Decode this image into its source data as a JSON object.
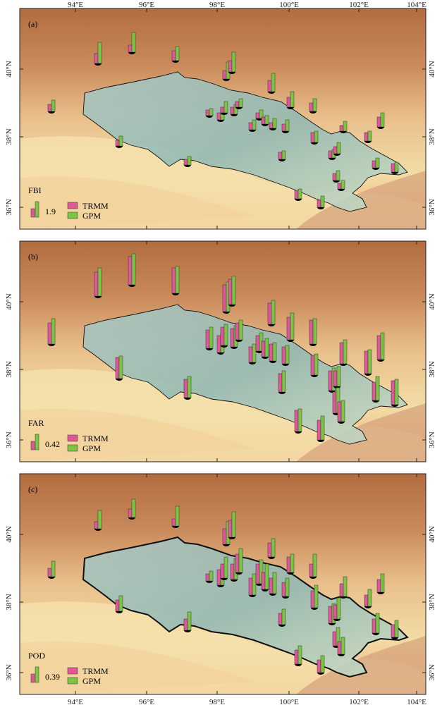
{
  "x_ticks": [
    "94°E",
    "96°E",
    "98°E",
    "100°E",
    "102°E",
    "104°E"
  ],
  "y_ticks": [
    "40°N",
    "38°N",
    "36°N"
  ],
  "colors": {
    "trmm": "#e0589a",
    "gpm": "#7cc443",
    "stem": "#000000"
  },
  "legend": {
    "trmm": "TRMM",
    "gpm": "GPM"
  },
  "panels": [
    {
      "label": "(a)",
      "metric": "FBI",
      "ref_value": "1.9"
    },
    {
      "label": "(b)",
      "metric": "FAR",
      "ref_value": "0.42"
    },
    {
      "label": "(c)",
      "metric": "POD",
      "ref_value": "0.39"
    }
  ]
}
